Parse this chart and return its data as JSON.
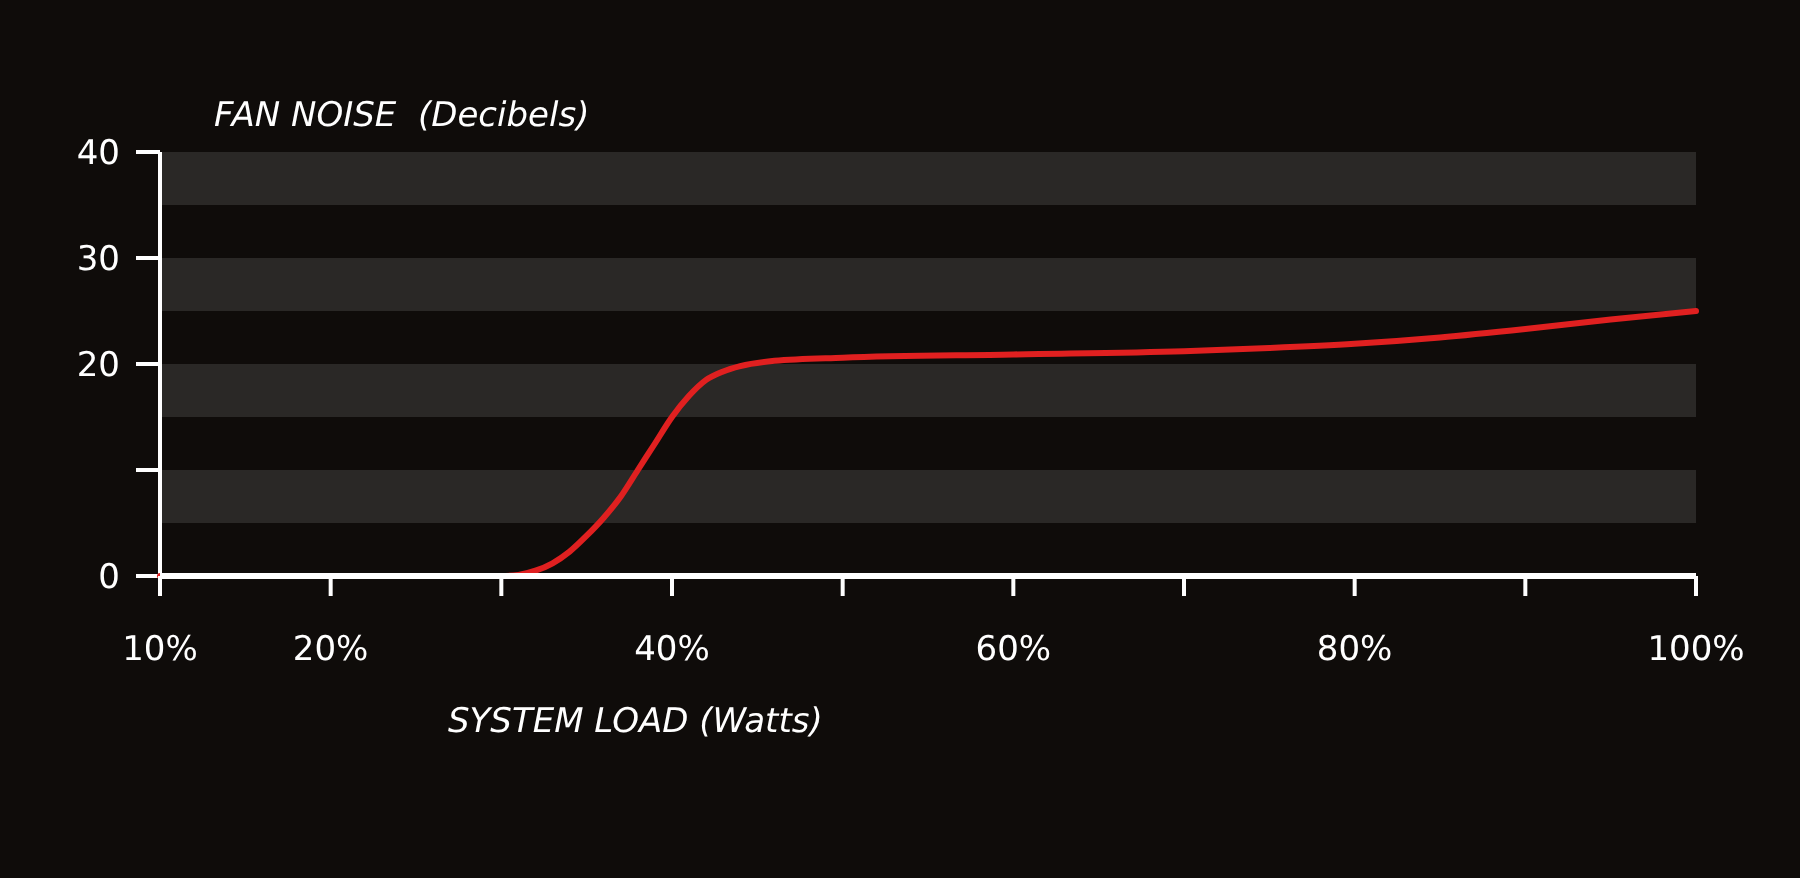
{
  "chart_data": {
    "type": "line",
    "ylabel": "FAN NOISE  (Decibels)",
    "xlabel": "SYSTEM LOAD (Watts)",
    "x": [
      10,
      20,
      30,
      31,
      32,
      33,
      34,
      35,
      36,
      37,
      38,
      39,
      40,
      41,
      42,
      43,
      44,
      46,
      50,
      60,
      70,
      75,
      80,
      85,
      90,
      95,
      100
    ],
    "series": [
      {
        "color": "#e02020",
        "values": [
          0,
          0,
          0,
          0.1,
          0.5,
          1.2,
          2.3,
          3.8,
          5.5,
          7.5,
          10,
          12.5,
          15,
          17,
          18.5,
          19.3,
          19.8,
          20.3,
          20.6,
          20.9,
          21.2,
          21.5,
          21.9,
          22.5,
          23.3,
          24.2,
          25
        ]
      }
    ],
    "xlim": [
      10,
      100
    ],
    "ylim": [
      0,
      40
    ],
    "xticks": [
      {
        "value": 10,
        "label": "10%"
      },
      {
        "value": 20,
        "label": "20%"
      },
      {
        "value": 30,
        "label": null
      },
      {
        "value": 40,
        "label": "40%"
      },
      {
        "value": 50,
        "label": null
      },
      {
        "value": 60,
        "label": "60%"
      },
      {
        "value": 70,
        "label": null
      },
      {
        "value": 80,
        "label": "80%"
      },
      {
        "value": 90,
        "label": null
      },
      {
        "value": 100,
        "label": "100%"
      }
    ],
    "yticks": [
      0,
      {
        "value": 10,
        "label": null
      },
      20,
      30,
      40
    ],
    "bands": [
      {
        "axis": "y",
        "from": 5,
        "to": 10,
        "color": "#2a2826"
      },
      {
        "axis": "y",
        "from": 15,
        "to": 20,
        "color": "#2a2826"
      },
      {
        "axis": "y",
        "from": 25,
        "to": 30,
        "color": "#2a2826"
      },
      {
        "axis": "y",
        "from": 35,
        "to": 40,
        "color": "#2a2826"
      }
    ],
    "grid": false,
    "marker": "none",
    "line_style": "solid"
  }
}
